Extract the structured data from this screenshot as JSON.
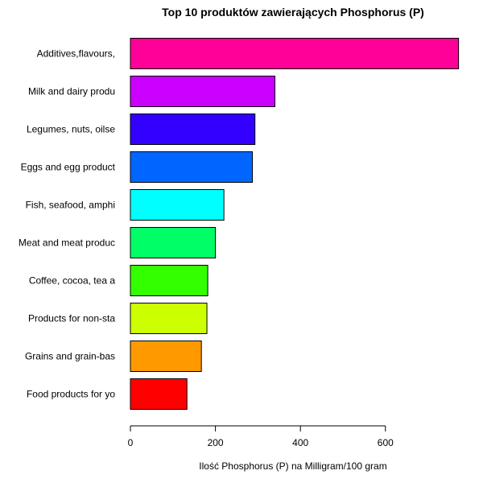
{
  "chart_data": {
    "type": "bar",
    "orientation": "horizontal",
    "title": "Top 10 produktów zawierających Phosphorus (P)",
    "xlabel": "Ilość Phosphorus (P) na Milligram/100 gram",
    "ylabel": "",
    "xlim": [
      0,
      770
    ],
    "xticks": [
      0,
      200,
      400,
      600
    ],
    "categories": [
      "Additives,flavours,",
      "Milk and dairy produ",
      "Legumes, nuts, oilse",
      "Eggs and egg product",
      "Fish, seafood, amphi",
      "Meat and meat produc",
      "Coffee, cocoa, tea a",
      "Products for non-sta",
      "Grains and grain-bas",
      "Food products for yo"
    ],
    "values": [
      772,
      340,
      293,
      287,
      220,
      200,
      182,
      180,
      167,
      133
    ],
    "colors": [
      "#FF0099",
      "#CC00FF",
      "#3300FF",
      "#0066FF",
      "#00FFFF",
      "#00FF66",
      "#33FF00",
      "#CCFF00",
      "#FF9900",
      "#FF0000"
    ],
    "grid": false,
    "legend": "none"
  }
}
